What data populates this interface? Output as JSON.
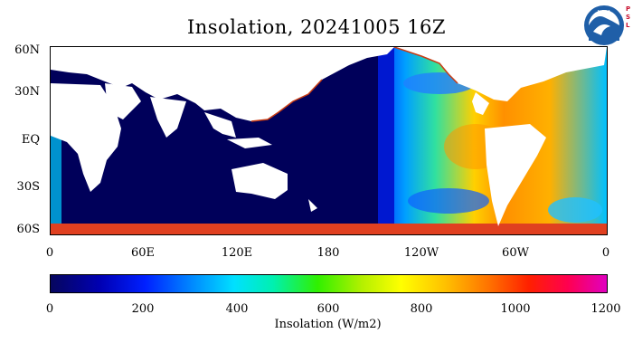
{
  "title": "Insolation, 20241005 16Z",
  "logo": {
    "emblem_text": "NOAA",
    "side_letters": [
      "P",
      "S",
      "L"
    ]
  },
  "map": {
    "y_ticks": [
      "60N",
      "30N",
      "EQ",
      "30S",
      "60S"
    ],
    "x_ticks": [
      "0",
      "60E",
      "120E",
      "180",
      "120W",
      "60W",
      "0"
    ],
    "colors": {
      "ocean_night": "#00005a",
      "land": "#ffffff",
      "coast_edge": "#c83c14"
    }
  },
  "colorbar": {
    "ticks": [
      "0",
      "200",
      "400",
      "600",
      "800",
      "1000",
      "1200"
    ],
    "label": "Insolation (W/m2)",
    "range": [
      0,
      1200
    ]
  }
}
